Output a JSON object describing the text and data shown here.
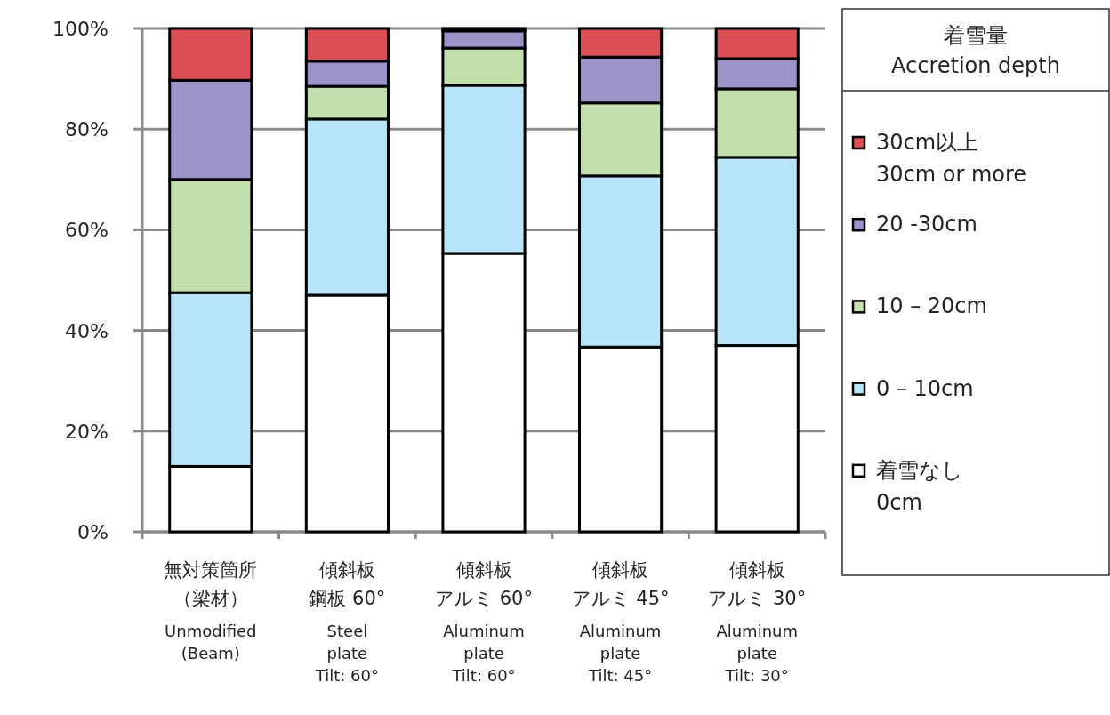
{
  "chart_data": {
    "type": "bar",
    "stacked": true,
    "categories": [
      "無対策箇所（梁材）\n\nUnmodified\n(Beam)",
      "傾斜板鋼板 60°\n\nSteel\nplate\nTilt: 60°",
      "傾斜板アルミ 60°\n\nAluminum\nplate\nTilt: 60°",
      "傾斜板アルミ 45°\n\nAluminum\nplate\nTilt: 45°",
      "傾斜板アルミ 30°\n\nAluminum\nplate\nTilt: 30°"
    ],
    "series": [
      {
        "name": "着雪なし\n0cm",
        "color": "#ffffff",
        "values": [
          13,
          47,
          55.3,
          36.7,
          37
        ]
      },
      {
        "name": "0 – 10cm",
        "color": "#b9e5f8",
        "values": [
          34.5,
          35,
          33.4,
          34,
          37.4
        ]
      },
      {
        "name": "10 – 20cm",
        "color": "#c3dfac",
        "values": [
          22.5,
          6.5,
          7.4,
          14.5,
          13.6
        ]
      },
      {
        "name": "20 -30cm",
        "color": "#9c93c8",
        "values": [
          19.7,
          5,
          3.4,
          9.1,
          6
        ]
      },
      {
        "name": "30cm以上\n30cm or more",
        "color": "#db5056",
        "values": [
          10.3,
          6.5,
          0.5,
          5.7,
          6
        ]
      }
    ],
    "ylim": [
      0,
      100
    ],
    "yticks": [
      {
        "value": 0,
        "label": "0%"
      },
      {
        "value": 20,
        "label": "20%"
      },
      {
        "value": 40,
        "label": "40%"
      },
      {
        "value": 60,
        "label": "60%"
      },
      {
        "value": 80,
        "label": "80%"
      },
      {
        "value": 100,
        "label": "100%"
      }
    ],
    "grid": "y",
    "legend": "right",
    "legend_title": "着雪量\nAccretion depth"
  }
}
